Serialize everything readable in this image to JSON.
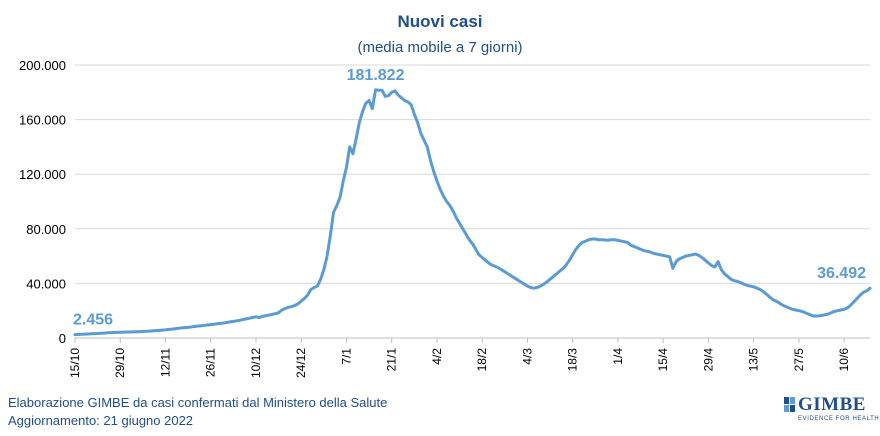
{
  "chart_data": {
    "type": "line",
    "title": "Nuovi casi",
    "subtitle": "(media mobile a 7 giorni)",
    "ylim": [
      0,
      200000
    ],
    "y_ticks": [
      0,
      40000,
      80000,
      120000,
      160000,
      200000
    ],
    "y_tick_labels": [
      "0",
      "40.000",
      "80.000",
      "120.000",
      "160.000",
      "200.000"
    ],
    "x_tick_labels": [
      "15/10",
      "29/10",
      "12/11",
      "26/11",
      "10/12",
      "24/12",
      "7/1",
      "21/1",
      "4/2",
      "18/2",
      "4/3",
      "18/3",
      "1/4",
      "15/4",
      "29/4",
      "13/5",
      "27/5",
      "10/6"
    ],
    "x_start": "15/10/2021",
    "x_end": "20/6/2022",
    "grid": "horizontal",
    "color": "#5b9bd5",
    "series": [
      {
        "values": [
          2456,
          2600,
          2700,
          2800,
          2950,
          3100,
          3200,
          3300,
          3450,
          3600,
          3800,
          3900,
          4000,
          4100,
          4200,
          4300,
          4350,
          4400,
          4500,
          4600,
          4650,
          4750,
          4900,
          5000,
          5200,
          5400,
          5600,
          5800,
          6000,
          6300,
          6500,
          6800,
          7100,
          7400,
          7600,
          7800,
          8100,
          8400,
          8700,
          9000,
          9200,
          9500,
          9800,
          10100,
          10400,
          10700,
          11000,
          11400,
          11800,
          12200,
          12600,
          13000,
          13500,
          14000,
          14500,
          15000,
          15500,
          15000,
          15800,
          16300,
          16800,
          17300,
          17800,
          18500,
          20500,
          21500,
          22500,
          23000,
          23800,
          25000,
          27000,
          29000,
          31500,
          35500,
          37000,
          38000,
          43000,
          50000,
          60000,
          75000,
          92000,
          97000,
          103000,
          115000,
          125000,
          140000,
          135000,
          146000,
          158000,
          166000,
          172000,
          174000,
          168000,
          181822,
          181500,
          181500,
          177000,
          177500,
          180000,
          181000,
          178000,
          176000,
          174000,
          173000,
          171000,
          164000,
          158000,
          150000,
          145000,
          140000,
          130000,
          122000,
          115000,
          109000,
          104000,
          100000,
          97000,
          93000,
          88000,
          84000,
          80000,
          76000,
          72000,
          69000,
          65000,
          61000,
          59000,
          57000,
          55000,
          53500,
          52500,
          51500,
          50000,
          48500,
          47000,
          45500,
          44000,
          42500,
          41000,
          39500,
          38000,
          37000,
          36500,
          37000,
          38000,
          39500,
          41000,
          43000,
          45000,
          47000,
          49000,
          51000,
          53500,
          57000,
          61000,
          65000,
          68000,
          70000,
          71000,
          72000,
          72500,
          72500,
          72000,
          72000,
          71800,
          71600,
          72000,
          72000,
          71500,
          71000,
          70500,
          70000,
          68000,
          67000,
          66000,
          65000,
          64000,
          63500,
          63000,
          62000,
          61500,
          61000,
          60500,
          60000,
          59500,
          51000,
          56000,
          58000,
          59000,
          60000,
          60500,
          61000,
          61500,
          60500,
          59000,
          57000,
          55000,
          53000,
          52000,
          56000,
          50000,
          47000,
          45000,
          43000,
          42000,
          41500,
          40500,
          39500,
          38500,
          38000,
          37500,
          36500,
          35500,
          34000,
          32000,
          30000,
          28000,
          27000,
          25500,
          24000,
          23000,
          22000,
          21000,
          20500,
          20000,
          19500,
          18500,
          17500,
          16500,
          16000,
          16200,
          16500,
          17000,
          17500,
          18500,
          19500,
          20000,
          20500,
          21000,
          22000,
          24000,
          26500,
          29000,
          31500,
          33500,
          34500,
          36492
        ]
      }
    ],
    "annotations": [
      {
        "label": "2.456",
        "index": 0
      },
      {
        "label": "181.822",
        "index": 93
      },
      {
        "label": "36.492",
        "index": 246
      }
    ]
  },
  "footer": {
    "line1": "Elaborazione GIMBE da casi confermati dal Ministero della Salute",
    "line2": "Aggiornamento: 21 giugno 2022"
  },
  "logo": {
    "text": "GIMBE",
    "tagline": "EVIDENCE FOR HEALTH"
  }
}
